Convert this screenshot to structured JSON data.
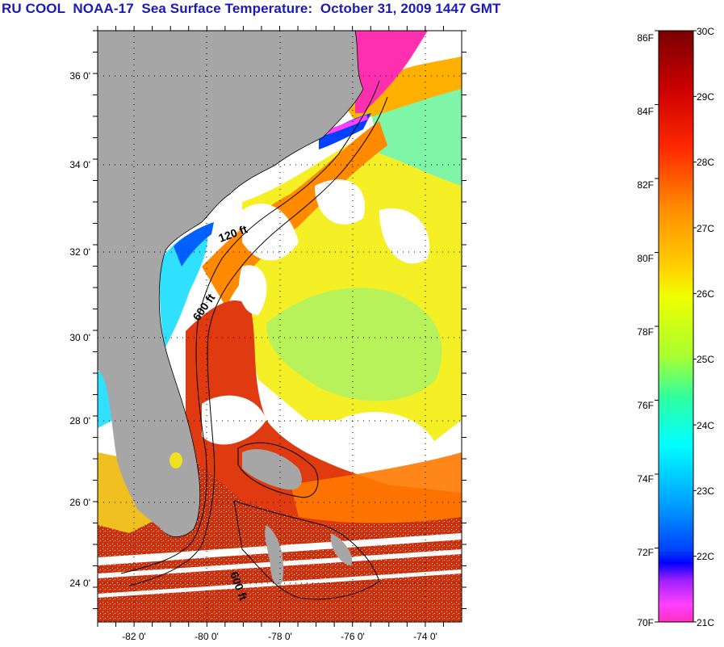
{
  "title": "RU COOL  NOAA-17  Sea Surface Temperature:  October 31, 2009 1447 GMT",
  "map": {
    "lat_ticks": [
      "36 0'",
      "34 0'",
      "32 0'",
      "30 0'",
      "28 0'",
      "26 0'",
      "24 0'"
    ],
    "lon_ticks": [
      "-82 0'",
      "-80 0'",
      "-78 0'",
      "-76 0'",
      "-74 0'"
    ],
    "contour_labels": [
      "120 ft",
      "600 ft",
      "600 ft"
    ]
  },
  "colorbar": {
    "fahrenheit_labels": [
      "86F",
      "84F",
      "82F",
      "80F",
      "78F",
      "76F",
      "74F",
      "72F",
      "70F"
    ],
    "celsius_labels": [
      "30C",
      "29C",
      "28C",
      "27C",
      "26C",
      "25C",
      "24C",
      "23C",
      "22C",
      "21C"
    ],
    "colors": [
      "#7a0000",
      "#cc0000",
      "#ff2a00",
      "#ff8c00",
      "#ffd000",
      "#f0ff00",
      "#a8ff30",
      "#30ffa0",
      "#00ffff",
      "#00a0ff",
      "#0040ff",
      "#0000ff",
      "#a020ff",
      "#ff40ff",
      "#ff30c0"
    ]
  }
}
